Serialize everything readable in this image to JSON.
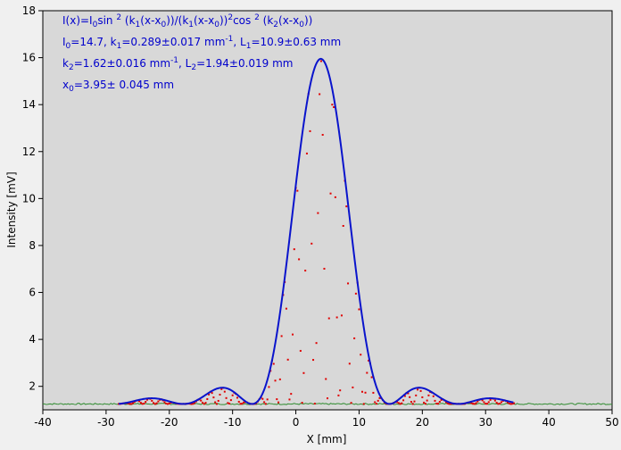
{
  "chart_data": {
    "type": "scatter",
    "title": "",
    "xlabel": "X [mm]",
    "ylabel": "Intensity [mV]",
    "xlim": [
      -40,
      50
    ],
    "ylim": [
      1,
      18
    ],
    "x_ticks": [
      -40,
      -30,
      -20,
      -10,
      0,
      10,
      20,
      30,
      40,
      50
    ],
    "y_ticks": [
      2,
      4,
      6,
      8,
      10,
      12,
      14,
      16,
      18
    ],
    "grid": false,
    "legend": "none",
    "colors": {
      "background": "#d8d8d8",
      "fit": "#0a14cc",
      "data": "#e00000",
      "baseline": "#2e8b2e"
    },
    "annotations": [
      "I(x)=I0sin 2 (k1(x-x0))/(k1(x-x0))2cos 2 (k2(x-x0))",
      "I0=14.7,  k1=0.289±0.017 mm-1,   L1=10.9±0.63 mm",
      "k2=1.62±0.016 mm-1,   L2=1.94±0.019 mm",
      "x0=3.95±  0.045 mm"
    ],
    "fit_params": {
      "I0": 14.7,
      "k1": 0.289,
      "k2": 1.62,
      "x0": 3.95,
      "baseline": 1.25,
      "x_range": [
        -28,
        34.5
      ]
    },
    "series": [
      {
        "kind": "measured",
        "x_range": [
          -28,
          34.5
        ],
        "peak_x": 3.95,
        "peak_y": 15.95,
        "side_maxima": [
          {
            "x": -23,
            "y": 1.5
          },
          {
            "x": -11.5,
            "y": 1.95
          },
          {
            "x": 19.5,
            "y": 1.95
          },
          {
            "x": 30.5,
            "y": 1.5
          }
        ]
      },
      {
        "kind": "fit envelope",
        "x_range": [
          -28,
          34.5
        ],
        "peak_x": 3.95,
        "peak_y": 15.95
      },
      {
        "kind": "baseline",
        "x_range": [
          -40,
          50
        ],
        "y": 1.25
      }
    ]
  }
}
